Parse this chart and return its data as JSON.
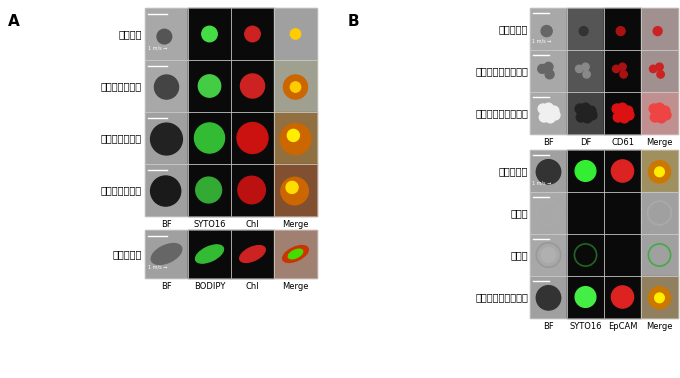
{
  "fig_width": 6.8,
  "fig_height": 3.78,
  "bg_color": "#ffffff",
  "panel_A_label": "A",
  "panel_B_label": "B",
  "label_fontsize": 11,
  "row_label_fontsize": 7.0,
  "axis_label_fontsize": 6.0,
  "panel_A_rows": [
    "クロレラ",
    "クラミドモナス",
    "ヘマトコッカス",
    "グロエオモナス",
    "ユーグレナ"
  ],
  "panel_A_col_labels_top": [
    "BF",
    "SYTO16",
    "Chl",
    "Merge"
  ],
  "panel_A_col_labels_bot": [
    "BF",
    "BODIPY",
    "Chl",
    "Merge"
  ],
  "panel_B_rows_top": [
    "単一血小板",
    "血小板凝集塊（小）",
    "血小板凝集塊（大）"
  ],
  "panel_B_col_labels_top": [
    "BF",
    "DF",
    "CD61",
    "Merge"
  ],
  "panel_B_rows_bot": [
    "肺がん細胞",
    "赤血球",
    "白血球",
    "循環がん細胞様細胞"
  ],
  "panel_B_col_labels_bot": [
    "BF",
    "SYTO16",
    "EpCAM",
    "Merge"
  ],
  "speed_label": "1 m/s →"
}
